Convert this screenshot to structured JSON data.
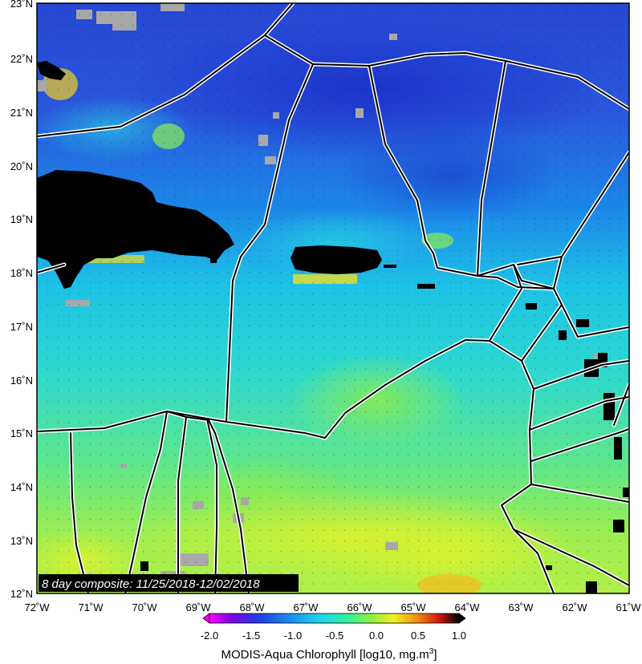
{
  "map": {
    "lat_labels": [
      "23˚N",
      "22˚N",
      "21˚N",
      "20˚N",
      "19˚N",
      "18˚N",
      "17˚N",
      "16˚N",
      "15˚N",
      "14˚N",
      "13˚N",
      "12˚N"
    ],
    "lon_labels": [
      "72˚W",
      "71˚W",
      "70˚W",
      "69˚W",
      "68˚W",
      "67˚W",
      "66˚W",
      "65˚W",
      "64˚W",
      "63˚W",
      "62˚W",
      "61˚W"
    ],
    "composite_label": "8 day composite: 11/25/2018-12/02/2018",
    "colorbar": {
      "ticks": [
        "-2.0",
        "-1.5",
        "-1.0",
        "-0.5",
        "0.0",
        "0.5",
        "1.0"
      ],
      "title": "MODIS-Aqua Chlorophyll [log10, mg.m",
      "title_superscript": "3",
      "title_close": "]",
      "range": [
        -2.0,
        1.0
      ],
      "colors": [
        "#ff00ff",
        "#7a00d8",
        "#1e3ee0",
        "#1e8ef0",
        "#20d8e8",
        "#30f0a8",
        "#80f040",
        "#f0f020",
        "#f0a010",
        "#e02010",
        "#000000"
      ]
    },
    "colors": {
      "land": "#000000",
      "nodata": "#a8a8a8",
      "boundary": "#000000",
      "deep_ocean": "#2b52d8",
      "mid_ocean": "#1ea2ea",
      "shelf": "#2cd8d6",
      "productive": "#7ee85a"
    }
  }
}
